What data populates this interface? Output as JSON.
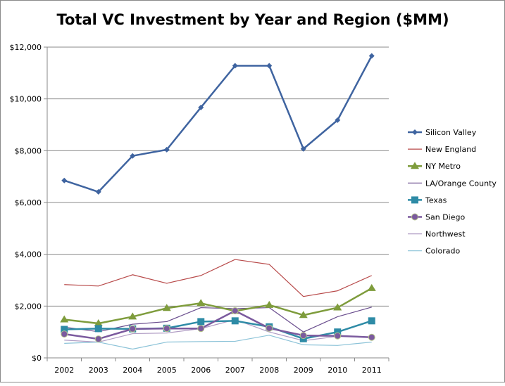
{
  "chart_data": {
    "type": "line",
    "title": "Total VC Investment by Year and Region ($MM)",
    "xlabel": "",
    "ylabel": "",
    "categories": [
      "2002",
      "2003",
      "2004",
      "2005",
      "2006",
      "2007",
      "2008",
      "2009",
      "2010",
      "2011"
    ],
    "ylim": [
      0,
      12000
    ],
    "yticks": [
      0,
      2000,
      4000,
      6000,
      8000,
      10000,
      12000
    ],
    "ytick_labels": [
      "$0",
      "$2,000",
      "$4,000",
      "$6,000",
      "$8,000",
      "$10,000",
      "$12,000"
    ],
    "grid": "horizontal major",
    "legend": "right",
    "series": [
      {
        "name": "Silicon Valley",
        "color": "#3F64A0",
        "marker": "diamond",
        "width": 2.5,
        "values": [
          6850,
          6410,
          7800,
          8040,
          9670,
          11280,
          11280,
          8070,
          9180,
          11660
        ]
      },
      {
        "name": "New England",
        "color": "#B84A4A",
        "marker": "none",
        "width": 1.2,
        "values": [
          2830,
          2775,
          3210,
          2880,
          3180,
          3800,
          3610,
          2370,
          2590,
          3180
        ]
      },
      {
        "name": "NY Metro",
        "color": "#7E9C3C",
        "marker": "triangle",
        "width": 2.5,
        "values": [
          1480,
          1330,
          1590,
          1920,
          2110,
          1810,
          2040,
          1650,
          1940,
          2690
        ]
      },
      {
        "name": "LA/Orange County",
        "color": "#6A4E8E",
        "marker": "none",
        "width": 1.2,
        "values": [
          1190,
          1010,
          1300,
          1400,
          1940,
          1900,
          1940,
          1000,
          1590,
          1960
        ]
      },
      {
        "name": "Texas",
        "color": "#2E8BA6",
        "marker": "square",
        "width": 2.5,
        "values": [
          1100,
          1130,
          1120,
          1145,
          1400,
          1430,
          1200,
          740,
          1000,
          1430
        ]
      },
      {
        "name": "San Diego",
        "color": "#7B5A9E",
        "marker": "circle",
        "width": 2.5,
        "values": [
          920,
          730,
          1120,
          1135,
          1135,
          1820,
          1145,
          865,
          850,
          795
        ]
      },
      {
        "name": "Northwest",
        "color": "#B09CC4",
        "marker": "none",
        "width": 1.2,
        "values": [
          685,
          610,
          935,
          960,
          1130,
          1480,
          1000,
          665,
          830,
          810
        ]
      },
      {
        "name": "Colorado",
        "color": "#8CC3D8",
        "marker": "none",
        "width": 1.2,
        "values": [
          560,
          610,
          340,
          610,
          630,
          640,
          875,
          505,
          480,
          610
        ]
      }
    ]
  }
}
